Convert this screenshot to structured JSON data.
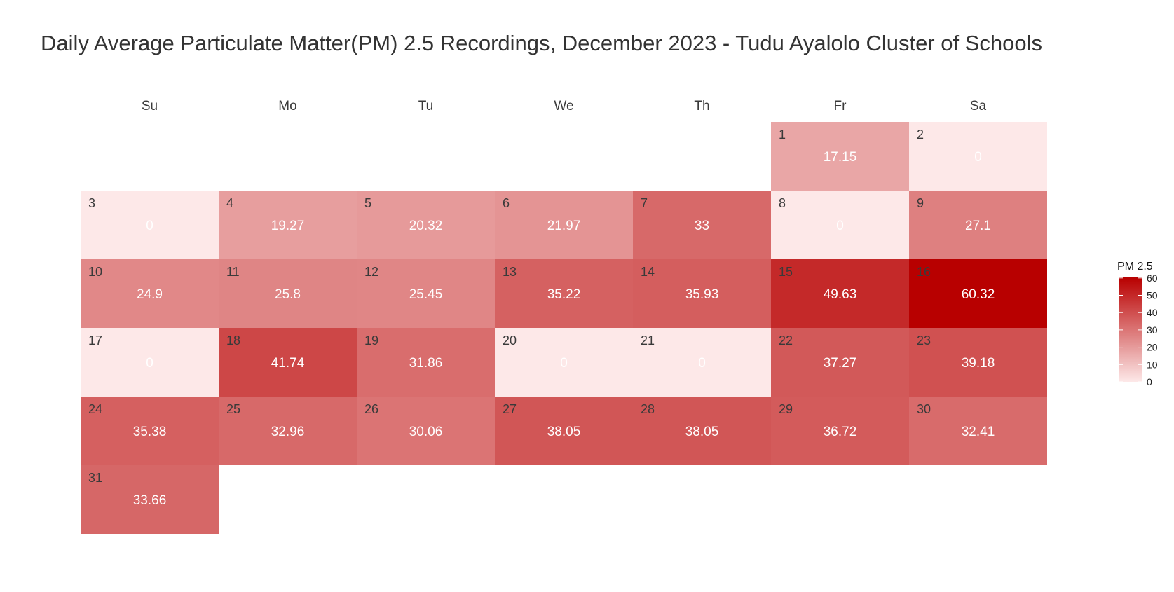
{
  "chart_data": {
    "type": "heatmap",
    "title": "Daily Average Particulate Matter(PM) 2.5 Recordings, December 2023 - Tudu Ayalolo Cluster of Schools",
    "weekdays": [
      "Su",
      "Mo",
      "Tu",
      "We",
      "Th",
      "Fr",
      "Sa"
    ],
    "first_weekday": "Fr",
    "days": [
      {
        "day": 1,
        "value": 17.15,
        "label": "17.15"
      },
      {
        "day": 2,
        "value": 0,
        "label": "0"
      },
      {
        "day": 3,
        "value": 0,
        "label": "0"
      },
      {
        "day": 4,
        "value": 19.27,
        "label": "19.27"
      },
      {
        "day": 5,
        "value": 20.32,
        "label": "20.32"
      },
      {
        "day": 6,
        "value": 21.97,
        "label": "21.97"
      },
      {
        "day": 7,
        "value": 33,
        "label": "33"
      },
      {
        "day": 8,
        "value": 0,
        "label": "0"
      },
      {
        "day": 9,
        "value": 27.1,
        "label": "27.1"
      },
      {
        "day": 10,
        "value": 24.9,
        "label": "24.9"
      },
      {
        "day": 11,
        "value": 25.8,
        "label": "25.8"
      },
      {
        "day": 12,
        "value": 25.45,
        "label": "25.45"
      },
      {
        "day": 13,
        "value": 35.22,
        "label": "35.22"
      },
      {
        "day": 14,
        "value": 35.93,
        "label": "35.93"
      },
      {
        "day": 15,
        "value": 49.63,
        "label": "49.63"
      },
      {
        "day": 16,
        "value": 60.32,
        "label": "60.32"
      },
      {
        "day": 17,
        "value": 0,
        "label": "0"
      },
      {
        "day": 18,
        "value": 41.74,
        "label": "41.74"
      },
      {
        "day": 19,
        "value": 31.86,
        "label": "31.86"
      },
      {
        "day": 20,
        "value": 0,
        "label": "0"
      },
      {
        "day": 21,
        "value": 0,
        "label": "0"
      },
      {
        "day": 22,
        "value": 37.27,
        "label": "37.27"
      },
      {
        "day": 23,
        "value": 39.18,
        "label": "39.18"
      },
      {
        "day": 24,
        "value": 35.38,
        "label": "35.38"
      },
      {
        "day": 25,
        "value": 32.96,
        "label": "32.96"
      },
      {
        "day": 26,
        "value": 30.06,
        "label": "30.06"
      },
      {
        "day": 27,
        "value": 38.05,
        "label": "38.05"
      },
      {
        "day": 28,
        "value": 38.05,
        "label": "38.05"
      },
      {
        "day": 29,
        "value": 36.72,
        "label": "36.72"
      },
      {
        "day": 30,
        "value": 32.41,
        "label": "32.41"
      },
      {
        "day": 31,
        "value": 33.66,
        "label": "33.66"
      }
    ],
    "color_scale": {
      "min": 0,
      "max": 60.32,
      "low_color": "#fde8e8",
      "high_color": "#b80000"
    },
    "legend": {
      "title": "PM 2.5",
      "ticks": [
        0,
        10,
        20,
        30,
        40,
        50,
        60
      ],
      "placement": "right"
    }
  }
}
